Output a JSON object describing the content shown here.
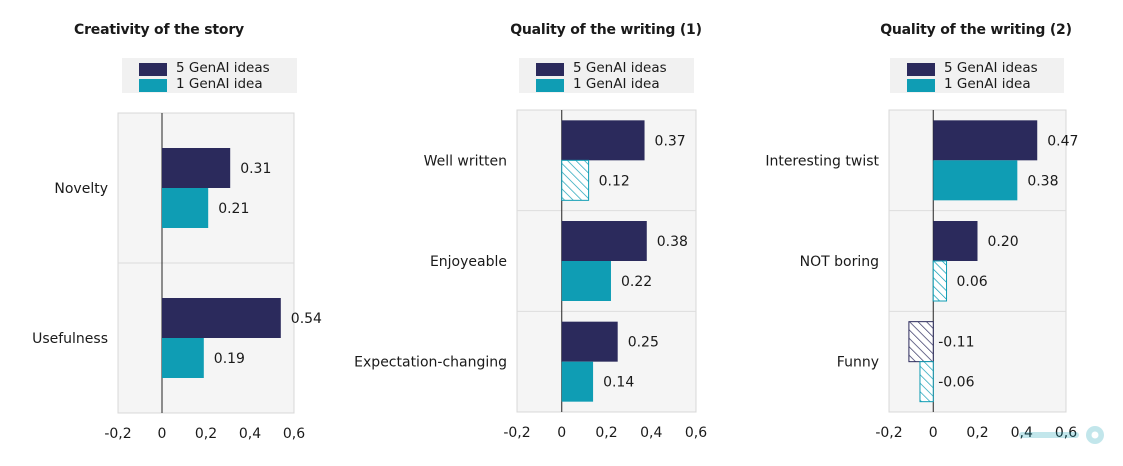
{
  "colors": {
    "series1": "#2b2a5c",
    "series2": "#0f9db4"
  },
  "legend": {
    "series1": "5 GenAI ideas",
    "series2": "1 GenAI idea"
  },
  "chart_data": [
    {
      "type": "bar",
      "orientation": "horizontal",
      "title": "Creativity of the story",
      "categories": [
        "Novelty",
        "Usefulness"
      ],
      "series": [
        {
          "name": "5 GenAI ideas",
          "values": [
            0.31,
            0.54
          ],
          "hatched": [
            false,
            false
          ]
        },
        {
          "name": "1 GenAI idea",
          "values": [
            0.21,
            0.19
          ],
          "hatched": [
            false,
            false
          ]
        }
      ],
      "value_labels": [
        [
          "0.31",
          "0.54"
        ],
        [
          "0.21",
          "0.19"
        ]
      ],
      "xlim": [
        -0.2,
        0.6
      ],
      "xticks": [
        "-0,2",
        "0",
        "0,2",
        "0,4",
        "0,6"
      ],
      "grid": true,
      "legend_position": "top"
    },
    {
      "type": "bar",
      "orientation": "horizontal",
      "title": "Quality of the writing (1)",
      "categories": [
        "Well written",
        "Enjoyeable",
        "Expectation-changing"
      ],
      "series": [
        {
          "name": "5 GenAI ideas",
          "values": [
            0.37,
            0.38,
            0.25
          ],
          "hatched": [
            false,
            false,
            false
          ]
        },
        {
          "name": "1 GenAI idea",
          "values": [
            0.12,
            0.22,
            0.14
          ],
          "hatched": [
            true,
            false,
            false
          ]
        }
      ],
      "value_labels": [
        [
          "0.37",
          "0.38",
          "0.25"
        ],
        [
          "0.12",
          "0.22",
          "0.14"
        ]
      ],
      "xlim": [
        -0.2,
        0.6
      ],
      "xticks": [
        "-0,2",
        "0",
        "0,2",
        "0,4",
        "0,6"
      ],
      "grid": true,
      "legend_position": "top"
    },
    {
      "type": "bar",
      "orientation": "horizontal",
      "title": "Quality of the writing (2)",
      "categories": [
        "Interesting twist",
        "NOT boring",
        "Funny"
      ],
      "series": [
        {
          "name": "5 GenAI ideas",
          "values": [
            0.47,
            0.2,
            -0.11
          ],
          "hatched": [
            false,
            false,
            true
          ]
        },
        {
          "name": "1 GenAI idea",
          "values": [
            0.38,
            0.06,
            -0.06
          ],
          "hatched": [
            false,
            true,
            true
          ]
        }
      ],
      "value_labels": [
        [
          "0.47",
          "0.20",
          "-0.11"
        ],
        [
          "0.38",
          "0.06",
          "-0.06"
        ]
      ],
      "xlim": [
        -0.2,
        0.6
      ],
      "xticks": [
        "-0,2",
        "0",
        "0,2",
        "0,4",
        "0,6"
      ],
      "grid": true,
      "legend_position": "top"
    }
  ]
}
